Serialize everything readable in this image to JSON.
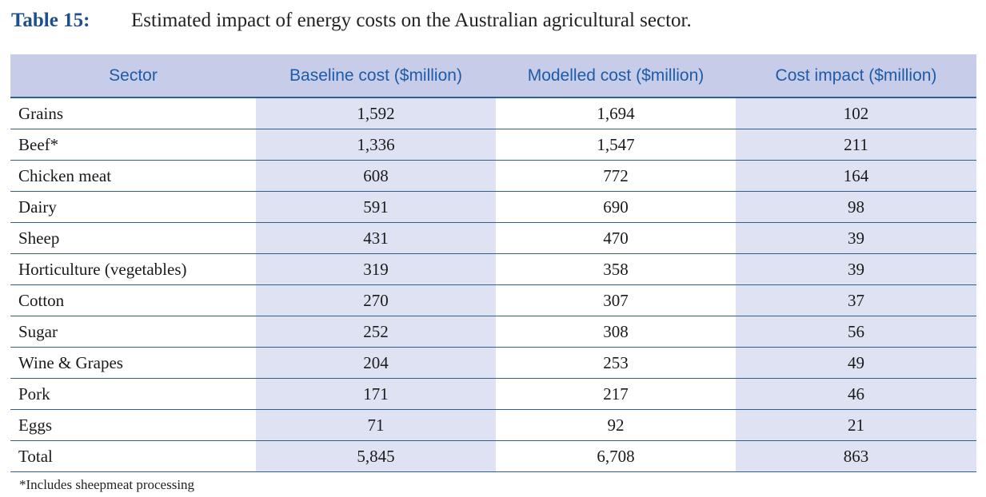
{
  "caption": {
    "label": "Table 15:",
    "title": "Estimated impact of energy costs on the Australian agricultural sector."
  },
  "table": {
    "headers": [
      "Sector",
      "Baseline cost ($million)",
      "Modelled cost ($million)",
      "Cost impact ($million)"
    ],
    "rows": [
      [
        "Grains",
        "1,592",
        "1,694",
        "102"
      ],
      [
        "Beef*",
        "1,336",
        "1,547",
        "211"
      ],
      [
        "Chicken meat",
        "608",
        "772",
        "164"
      ],
      [
        "Dairy",
        "591",
        "690",
        "98"
      ],
      [
        "Sheep",
        "431",
        "470",
        "39"
      ],
      [
        "Horticulture (vegetables)",
        "319",
        "358",
        "39"
      ],
      [
        "Cotton",
        "270",
        "307",
        "37"
      ],
      [
        "Sugar",
        "252",
        "308",
        "56"
      ],
      [
        "Wine & Grapes",
        "204",
        "253",
        "49"
      ],
      [
        "Pork",
        "171",
        "217",
        "46"
      ],
      [
        "Eggs",
        "71",
        "92",
        "21"
      ],
      [
        "Total",
        "5,845",
        "6,708",
        "863"
      ]
    ]
  },
  "footnote": "*Includes sheepmeat processing",
  "colors": {
    "caption_label": "#1e4f8c",
    "header_bg": "#c7cde9",
    "header_text": "#1e5ba8",
    "shaded_cell": "#dfe2f3",
    "rule": "#2d5f8f"
  }
}
